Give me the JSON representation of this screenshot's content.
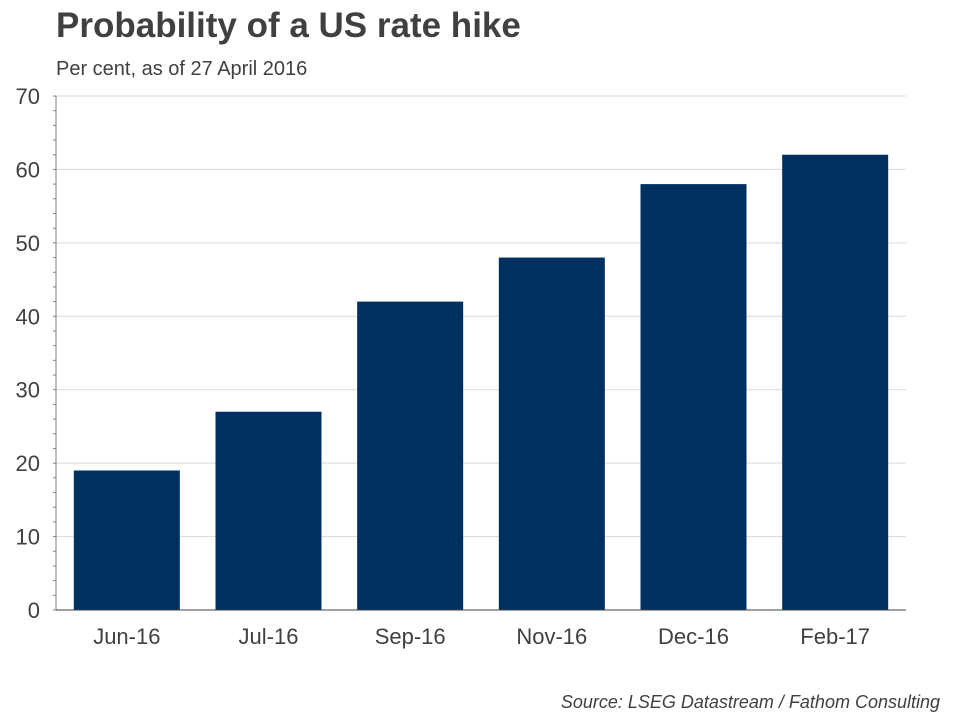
{
  "header": {
    "title": "Probability of a US rate hike",
    "subtitle": "Per cent, as of 27 April 2016"
  },
  "footer": {
    "source": "Source: LSEG Datastream / Fathom Consulting"
  },
  "colors": {
    "bar": "#00305f",
    "grid": "#d9d9d9",
    "axis": "#808080",
    "text": "#404040"
  },
  "chart_data": {
    "type": "bar",
    "title": "Probability of a US rate hike",
    "subtitle": "Per cent, as of 27 April 2016",
    "categories": [
      "Jun-16",
      "Jul-16",
      "Sep-16",
      "Nov-16",
      "Dec-16",
      "Feb-17"
    ],
    "values": [
      19,
      27,
      42,
      48,
      58,
      62
    ],
    "ylim": [
      0,
      70
    ],
    "yticks": [
      0,
      10,
      20,
      30,
      40,
      50,
      60,
      70
    ],
    "grid": true,
    "legend": "none"
  }
}
